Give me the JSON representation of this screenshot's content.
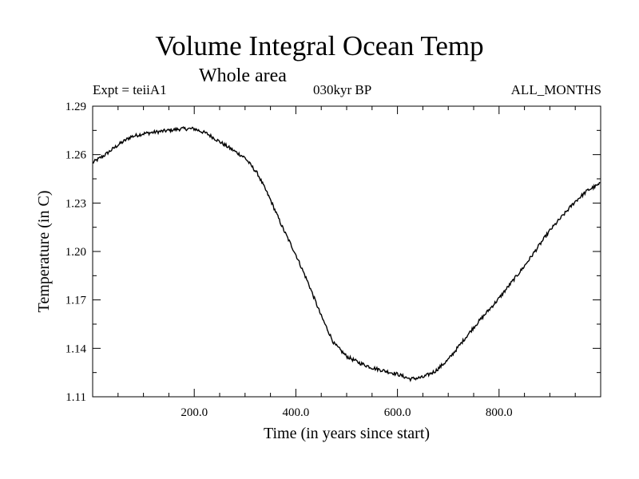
{
  "chart_data": {
    "type": "line",
    "title": "Volume Integral Ocean Temp",
    "subtitle": "Whole area",
    "annotations": {
      "experiment": "Expt = teiiA1",
      "period": "030kyr BP",
      "months": "ALL_MONTHS"
    },
    "xlabel": "Time (in years since start)",
    "ylabel": "Temperature (in C)",
    "xlim": [
      0,
      1000
    ],
    "ylim": [
      1.11,
      1.29
    ],
    "xticks": [
      200,
      400,
      600,
      800
    ],
    "xtick_labels": [
      "200.0",
      "400.0",
      "600.0",
      "800.0"
    ],
    "yticks": [
      1.11,
      1.14,
      1.17,
      1.2,
      1.23,
      1.26,
      1.29
    ],
    "ytick_labels": [
      "1.11",
      "1.14",
      "1.17",
      "1.20",
      "1.23",
      "1.26",
      "1.29"
    ],
    "grid": false,
    "series": [
      {
        "x": [
          0,
          25,
          50,
          75,
          100,
          125,
          150,
          175,
          200,
          225,
          250,
          275,
          300,
          325,
          350,
          375,
          400,
          425,
          450,
          475,
          500,
          525,
          550,
          575,
          600,
          625,
          650,
          675,
          700,
          725,
          750,
          775,
          800,
          825,
          850,
          875,
          900,
          925,
          950,
          975,
          1000
        ],
        "values": [
          1.255,
          1.26,
          1.266,
          1.271,
          1.273,
          1.274,
          1.275,
          1.276,
          1.276,
          1.273,
          1.268,
          1.263,
          1.258,
          1.248,
          1.232,
          1.214,
          1.198,
          1.18,
          1.16,
          1.143,
          1.135,
          1.131,
          1.128,
          1.126,
          1.124,
          1.121,
          1.122,
          1.126,
          1.133,
          1.143,
          1.153,
          1.162,
          1.171,
          1.181,
          1.191,
          1.202,
          1.213,
          1.222,
          1.231,
          1.238,
          1.242
        ]
      }
    ]
  }
}
